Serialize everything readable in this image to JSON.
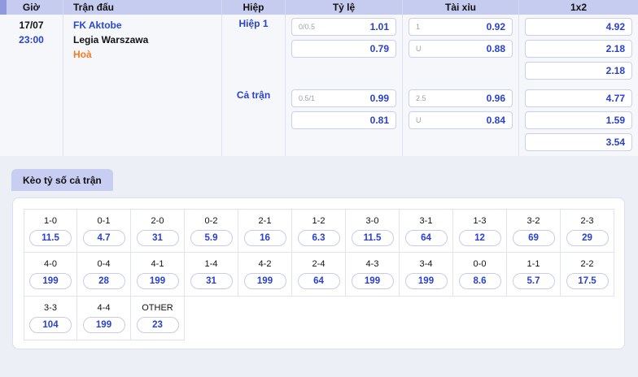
{
  "odds_table": {
    "headers": {
      "time": "Giờ",
      "match": "Trận đấu",
      "half": "Hiệp",
      "rate": "Tỷ lệ",
      "over_under": "Tài xỉu",
      "one_x_two": "1x2"
    },
    "row": {
      "date": "17/07",
      "time": "23:00",
      "home_team": "FK Aktobe",
      "away_team": "Legia Warszawa",
      "result": "Hoà",
      "sections": [
        {
          "period": "Hiệp 1",
          "rate": [
            {
              "label": "0/0.5",
              "value": "1.01"
            },
            {
              "label": "",
              "value": "0.79"
            }
          ],
          "over_under": [
            {
              "label": "1",
              "value": "0.92"
            },
            {
              "label": "U",
              "value": "0.88"
            }
          ],
          "one_x_two": [
            "4.92",
            "2.18",
            "2.18"
          ]
        },
        {
          "period": "Cả trận",
          "rate": [
            {
              "label": "0.5/1",
              "value": "0.99"
            },
            {
              "label": "",
              "value": "0.81"
            }
          ],
          "over_under": [
            {
              "label": "2.5",
              "value": "0.96"
            },
            {
              "label": "U",
              "value": "0.84"
            }
          ],
          "one_x_two": [
            "4.77",
            "1.59",
            "3.54"
          ]
        }
      ]
    }
  },
  "score_section": {
    "tab_label": "Kèo tỷ số cả trận",
    "rows": [
      [
        {
          "score": "1-0",
          "odds": "11.5"
        },
        {
          "score": "0-1",
          "odds": "4.7"
        },
        {
          "score": "2-0",
          "odds": "31"
        },
        {
          "score": "0-2",
          "odds": "5.9"
        },
        {
          "score": "2-1",
          "odds": "16"
        },
        {
          "score": "1-2",
          "odds": "6.3"
        },
        {
          "score": "3-0",
          "odds": "11.5"
        },
        {
          "score": "3-1",
          "odds": "64"
        },
        {
          "score": "1-3",
          "odds": "12"
        },
        {
          "score": "3-2",
          "odds": "69"
        },
        {
          "score": "2-3",
          "odds": "29"
        }
      ],
      [
        {
          "score": "4-0",
          "odds": "199"
        },
        {
          "score": "0-4",
          "odds": "28"
        },
        {
          "score": "4-1",
          "odds": "199"
        },
        {
          "score": "1-4",
          "odds": "31"
        },
        {
          "score": "4-2",
          "odds": "199"
        },
        {
          "score": "2-4",
          "odds": "64"
        },
        {
          "score": "4-3",
          "odds": "199"
        },
        {
          "score": "3-4",
          "odds": "199"
        },
        {
          "score": "0-0",
          "odds": "8.6"
        },
        {
          "score": "1-1",
          "odds": "5.7"
        },
        {
          "score": "2-2",
          "odds": "17.5"
        }
      ],
      [
        {
          "score": "3-3",
          "odds": "104"
        },
        {
          "score": "4-4",
          "odds": "199"
        },
        {
          "score": "OTHER",
          "odds": "23"
        }
      ]
    ]
  },
  "colors": {
    "accent_blue": "#2940d3",
    "accent_orange": "#fb7a1e",
    "header_bg": "#c6ccef",
    "header_notch": "#9099dd",
    "tab_bg": "#c8cef2",
    "row_bg": "#f5f7fb",
    "page_bg": "#edeff6"
  }
}
